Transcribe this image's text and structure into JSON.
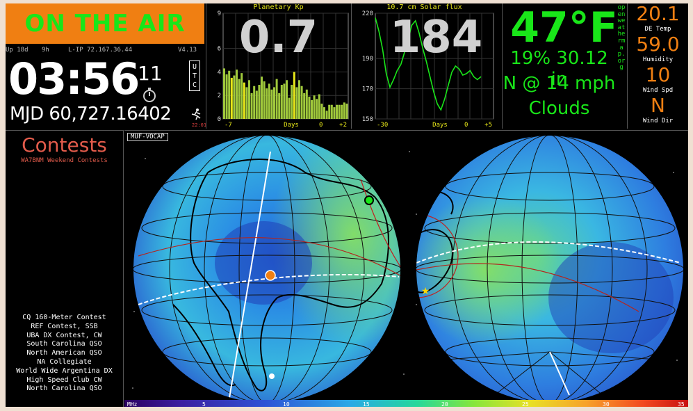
{
  "status": {
    "on_air": "ON THE AIR"
  },
  "clock": {
    "uptime_days": "Up 18d",
    "uptime_hours": "9h",
    "lip": "L-IP 72.167.36.44",
    "version": "V4.13",
    "time": "03:56",
    "seconds": "11",
    "mjd": "MJD 60,727.16402",
    "utc_label": "UTC",
    "runner_time": "22:01"
  },
  "kp": {
    "title": "Planetary Kp",
    "value": "0.7",
    "x_label": "Days",
    "x_ticks": [
      "-7",
      "0",
      "+2"
    ],
    "y_ticks": [
      "9",
      "6",
      "4",
      "2",
      "0"
    ]
  },
  "flux": {
    "title": "10.7 cm Solar flux",
    "value": "184",
    "x_label": "Days",
    "x_ticks": [
      "-30",
      "0",
      "+5"
    ],
    "y_ticks": [
      "220",
      "190",
      "170",
      "150"
    ]
  },
  "weather": {
    "temp": "47°F",
    "line1": "19% 30.12 in",
    "line2": "N @ 14 mph",
    "line3": "Clouds",
    "vertical": "openweathermap.org"
  },
  "side": {
    "temp_value": "20.1",
    "temp_label": "DE Temp",
    "hum_value": "59.0",
    "hum_label": "Humidity",
    "wspd_value": "10",
    "wspd_label": "Wind Spd",
    "wdir_value": "N",
    "wdir_label": "Wind Dir"
  },
  "contests": {
    "title": "Contests",
    "subtitle": "WA7BNM Weekend Contests",
    "items": [
      "CQ 160-Meter Contest",
      "REF Contest, SSB",
      "UBA DX Contest, CW",
      "South Carolina QSO",
      "North American QSO",
      "NA Collegiate",
      "World Wide Argentina DX",
      "High Speed Club CW",
      "North Carolina QSO"
    ]
  },
  "map": {
    "tag": "MUF-VOCAP",
    "scale_unit": "MHz",
    "scale_ticks": [
      "5",
      "10",
      "15",
      "20",
      "25",
      "30",
      "35"
    ]
  },
  "colors": {
    "accent_orange": "#f07f12",
    "accent_green": "#19e619",
    "graph_bar": "#a0c93c",
    "graph_line": "#19e619",
    "contest_red": "#e25b4b"
  },
  "chart_data": [
    {
      "type": "bar",
      "title": "Planetary Kp",
      "xlabel": "Days",
      "ylim": [
        0,
        9
      ],
      "x_range": [
        -7,
        2
      ],
      "values": [
        4.3,
        3.8,
        4.1,
        3.5,
        3.7,
        4.2,
        3.4,
        3.9,
        3.1,
        2.7,
        3.3,
        2.2,
        2.8,
        2.4,
        2.9,
        3.6,
        3.2,
        2.6,
        3.0,
        2.5,
        2.7,
        3.4,
        2.2,
        2.9,
        3.0,
        3.3,
        1.8,
        2.9,
        4.0,
        2.7,
        3.3,
        2.8,
        2.2,
        2.5,
        1.9,
        1.6,
        2.0,
        1.7,
        2.1,
        1.3,
        1.0,
        0.7,
        1.2,
        1.2,
        1.0,
        1.2,
        1.2,
        1.2,
        1.4,
        1.3
      ]
    },
    {
      "type": "line",
      "title": "10.7 cm Solar flux",
      "xlabel": "Days",
      "ylim": [
        150,
        220
      ],
      "x_range": [
        -30,
        5
      ],
      "values": [
        217,
        208,
        196,
        180,
        171,
        176,
        182,
        186,
        194,
        203,
        212,
        215,
        207,
        197,
        188,
        178,
        168,
        160,
        156,
        163,
        172,
        181,
        185,
        183,
        179,
        180,
        182,
        178,
        176,
        178
      ]
    }
  ]
}
